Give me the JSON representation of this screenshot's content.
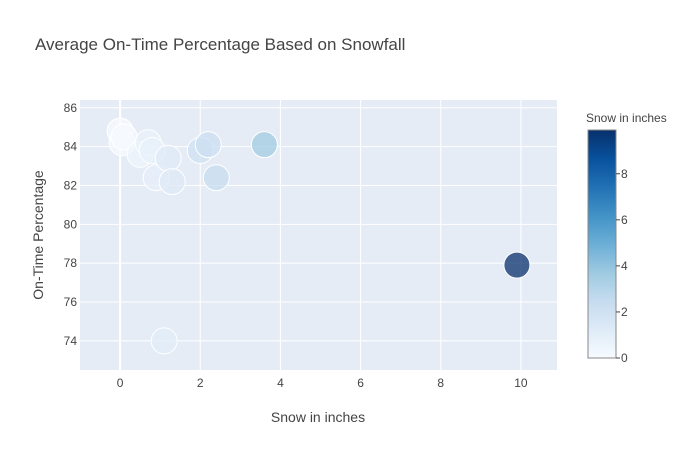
{
  "chart_data": {
    "type": "scatter",
    "title": "Average On-Time Percentage Based on Snowfall",
    "xlabel": "Snow in inches",
    "ylabel": "On-Time Percentage",
    "xlim": [
      -1,
      10.9
    ],
    "ylim": [
      72.5,
      86.4
    ],
    "x_ticks": [
      0,
      2,
      4,
      6,
      8,
      10
    ],
    "y_ticks": [
      74,
      76,
      78,
      80,
      82,
      84,
      86
    ],
    "grid": true,
    "marker_size_encodes": "Snow in inches",
    "colorbar": {
      "title": "Snow in inches",
      "range": [
        0,
        9.9
      ],
      "ticks": [
        0,
        2,
        4,
        6,
        8
      ],
      "colorscale": [
        "#f7fbff",
        "#deebf7",
        "#c6dbef",
        "#9ecae1",
        "#6baed6",
        "#4292c6",
        "#2171b5",
        "#08519c",
        "#08306b"
      ]
    },
    "points": [
      {
        "x": 0.0,
        "y": 84.8
      },
      {
        "x": 0.05,
        "y": 84.2
      },
      {
        "x": 0.1,
        "y": 84.5
      },
      {
        "x": 0.5,
        "y": 83.6
      },
      {
        "x": 0.7,
        "y": 84.2
      },
      {
        "x": 0.8,
        "y": 83.8
      },
      {
        "x": 0.9,
        "y": 82.4
      },
      {
        "x": 1.2,
        "y": 83.4
      },
      {
        "x": 1.3,
        "y": 82.2
      },
      {
        "x": 1.1,
        "y": 74.0
      },
      {
        "x": 2.0,
        "y": 83.8
      },
      {
        "x": 2.2,
        "y": 84.1
      },
      {
        "x": 2.4,
        "y": 82.4
      },
      {
        "x": 3.6,
        "y": 84.1
      },
      {
        "x": 9.9,
        "y": 77.9
      }
    ]
  }
}
